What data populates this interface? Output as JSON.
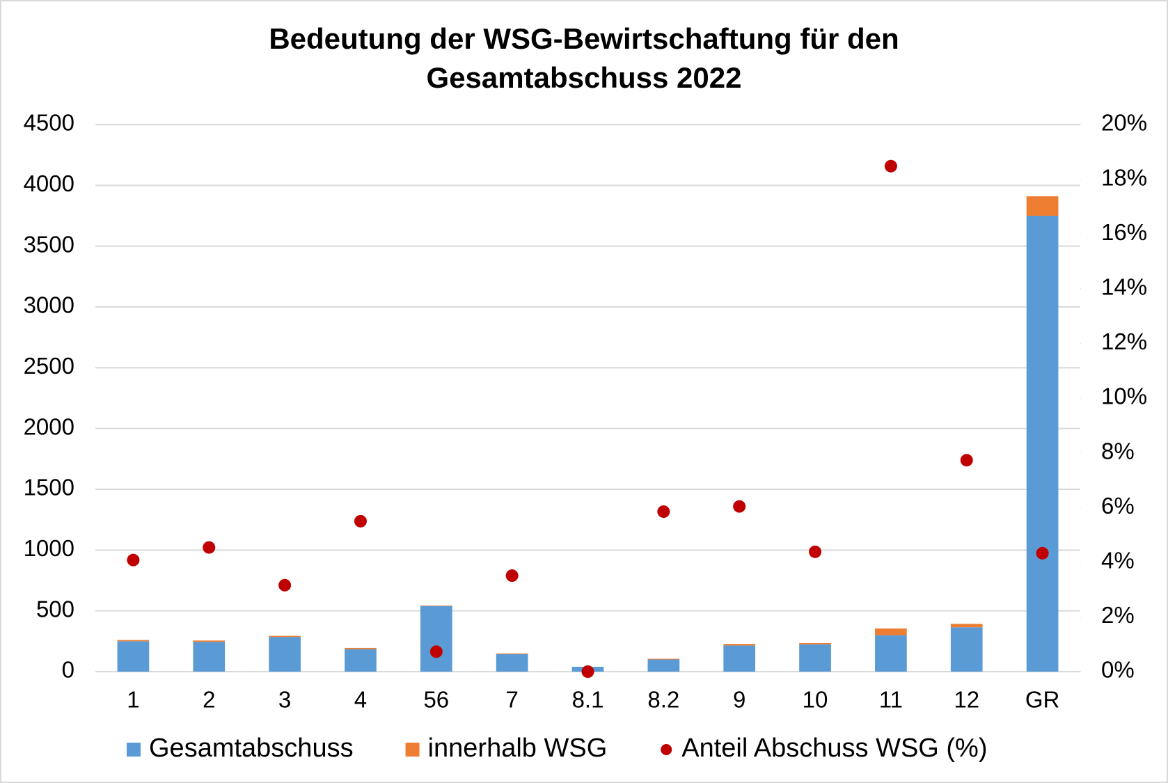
{
  "chart_data": {
    "type": "bar",
    "stacked": true,
    "title": "Bedeutung der WSG-Bewirtschaftung für den Gesamtabschuss 2022",
    "categories": [
      "1",
      "2",
      "3",
      "4",
      "56",
      "7",
      "8.1",
      "8.2",
      "9",
      "10",
      "11",
      "12",
      "GR"
    ],
    "series": [
      {
        "name": "Gesamtabschuss",
        "color": "#5b9bd5",
        "values": [
          250,
          245,
          285,
          185,
          540,
          145,
          40,
          100,
          215,
          225,
          300,
          365,
          3750
        ]
      },
      {
        "name": "innerhalb WSG",
        "color": "#ed7d31",
        "values": [
          10,
          11,
          9,
          10,
          4,
          5,
          0,
          6,
          13,
          10,
          55,
          28,
          160
        ]
      },
      {
        "name": "Anteil Abschuss WSG (%)",
        "color": "#c00000",
        "type": "scatter",
        "axis": "y2",
        "values": [
          4.08,
          4.54,
          3.16,
          5.5,
          0.73,
          3.51,
          0,
          5.85,
          6.04,
          4.38,
          18.48,
          7.73,
          4.33
        ]
      }
    ],
    "ylim": [
      0,
      4500
    ],
    "yticks": [
      0,
      500,
      1000,
      1500,
      2000,
      2500,
      3000,
      3500,
      4000,
      4500
    ],
    "y2lim": [
      0,
      20
    ],
    "y2ticks": [
      {
        "value": 0,
        "label": "0%"
      },
      {
        "value": 2,
        "label": "2%"
      },
      {
        "value": 4,
        "label": "4%"
      },
      {
        "value": 6,
        "label": "6%"
      },
      {
        "value": 8,
        "label": "8%"
      },
      {
        "value": 10,
        "label": "10%"
      },
      {
        "value": 12,
        "label": "12%"
      },
      {
        "value": 14,
        "label": "14%"
      },
      {
        "value": 16,
        "label": "16%"
      },
      {
        "value": 18,
        "label": "18%"
      },
      {
        "value": 20,
        "label": "20%"
      }
    ],
    "grid": true,
    "legend": "bottom"
  }
}
